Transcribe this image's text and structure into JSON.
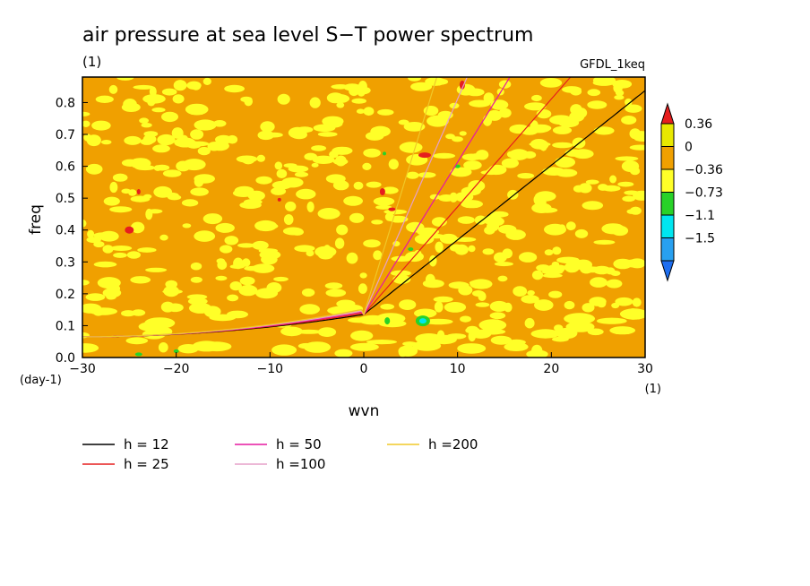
{
  "chart_data": {
    "type": "heatmap",
    "title": "air pressure at sea level S−T power spectrum",
    "subtitle_left": "(1)",
    "subtitle_right": "GFDL_1keq",
    "xlabel": "wvn",
    "ylabel": "freq",
    "x_unit_label": "(1)",
    "y_unit_label": "(day-1)",
    "xlim": [
      -30,
      30
    ],
    "ylim": [
      0,
      0.88
    ],
    "xticks": [
      {
        "value": -30,
        "label": "−30"
      },
      {
        "value": -20,
        "label": "−20"
      },
      {
        "value": -10,
        "label": "−10"
      },
      {
        "value": 0,
        "label": "0"
      },
      {
        "value": 10,
        "label": "10"
      },
      {
        "value": 20,
        "label": "20"
      },
      {
        "value": 30,
        "label": "30"
      }
    ],
    "yticks": [
      {
        "value": 0.0,
        "label": "0.0"
      },
      {
        "value": 0.1,
        "label": "0.1"
      },
      {
        "value": 0.2,
        "label": "0.2"
      },
      {
        "value": 0.3,
        "label": "0.3"
      },
      {
        "value": 0.4,
        "label": "0.4"
      },
      {
        "value": 0.5,
        "label": "0.5"
      },
      {
        "value": 0.6,
        "label": "0.6"
      },
      {
        "value": 0.7,
        "label": "0.7"
      },
      {
        "value": 0.8,
        "label": "0.8"
      }
    ],
    "colorbar": {
      "levels": [
        {
          "label": "0.36",
          "color": "#e8e800"
        },
        {
          "label": "0",
          "color": "#f0a000"
        },
        {
          "label": "−0.36",
          "color": "#ffff28"
        },
        {
          "label": "−0.73",
          "color": "#28d228"
        },
        {
          "label": "−1.1",
          "color": "#00e6f0"
        },
        {
          "label": "−1.5",
          "color": "#28a0f0"
        }
      ],
      "top_color": "#e61e1e",
      "bottom_color": "#1e6ef0"
    },
    "colors": {
      "orange": "#f0a000",
      "yellow": "#ffff28",
      "red": "#e61e1e",
      "green": "#28d228",
      "cyan": "#00e6f0"
    },
    "series": [
      {
        "name": "h = 12",
        "h": 12,
        "color": "#000000"
      },
      {
        "name": "h = 25",
        "h": 25,
        "color": "#e61e1e"
      },
      {
        "name": "h = 50",
        "h": 50,
        "color": "#e619a0"
      },
      {
        "name": "h =100",
        "h": 100,
        "color": "#e6a0c8"
      },
      {
        "name": "h =200",
        "h": 200,
        "color": "#f0c828"
      }
    ]
  }
}
